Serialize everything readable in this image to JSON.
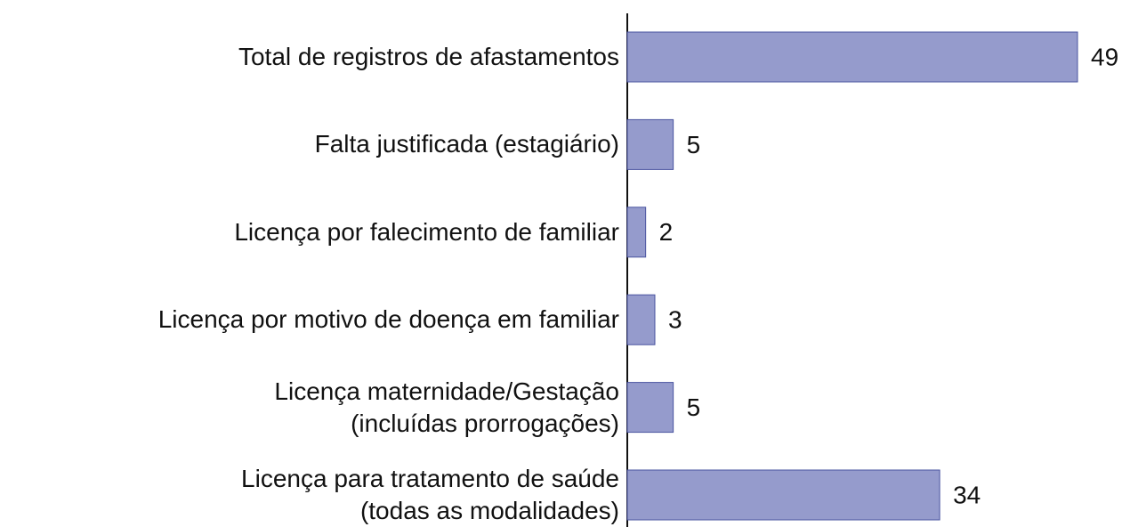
{
  "chart_data": {
    "type": "bar",
    "orientation": "horizontal",
    "categories": [
      "Total de registros de afastamentos",
      "Falta justificada (estagiário)",
      "Licença por falecimento de familiar",
      "Licença por motivo de doença em familiar",
      "Licença maternidade/Gestação\n(incluídas prorrogações)",
      "Licença para tratamento de saúde\n(todas as modalidades)"
    ],
    "values": [
      49,
      5,
      2,
      3,
      5,
      34
    ],
    "color": "#959bcc"
  }
}
